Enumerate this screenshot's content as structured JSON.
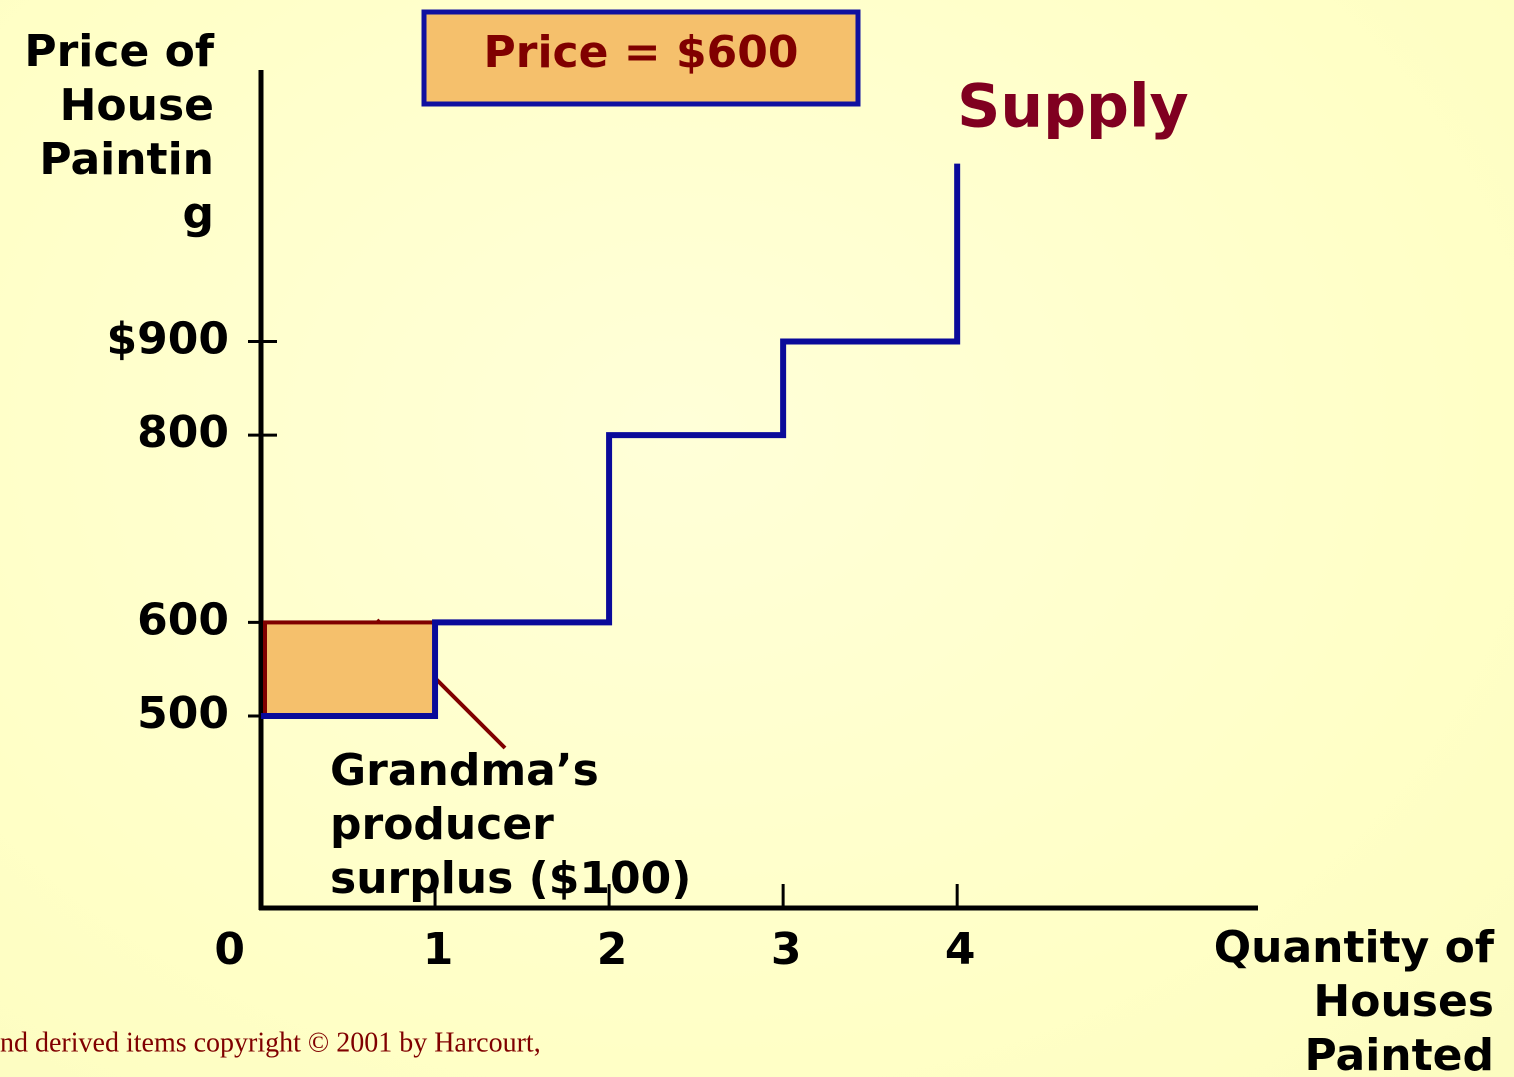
{
  "chart_data": {
    "type": "step",
    "price_box": "Price = $600",
    "y_label": [
      "Price of",
      "House",
      "Paintin",
      "g"
    ],
    "x_label": [
      "Quantity of",
      "Houses",
      "Painted"
    ],
    "xlim": [
      0,
      5.74
    ],
    "xticks": [
      0,
      1,
      2,
      3,
      4
    ],
    "ylim": [
      295,
      1190
    ],
    "yticks": [
      {
        "value": 900,
        "label": "$900"
      },
      800,
      600,
      500
    ],
    "series": [
      {
        "name": "Supply",
        "color": "#0a0a9a",
        "x": [
          0,
          1,
          1,
          2,
          2,
          3,
          3,
          4,
          4
        ],
        "values": [
          500,
          500,
          600,
          600,
          800,
          800,
          900,
          900,
          1090
        ]
      }
    ],
    "surplus": {
      "x": [
        0,
        1
      ],
      "y": [
        500,
        600
      ],
      "color": "#f5c06c",
      "label": [
        "Grandma’s",
        "producer",
        "surplus ($100)"
      ]
    },
    "footer": "nd derived items copyright © 2001 by Harcourt,"
  }
}
